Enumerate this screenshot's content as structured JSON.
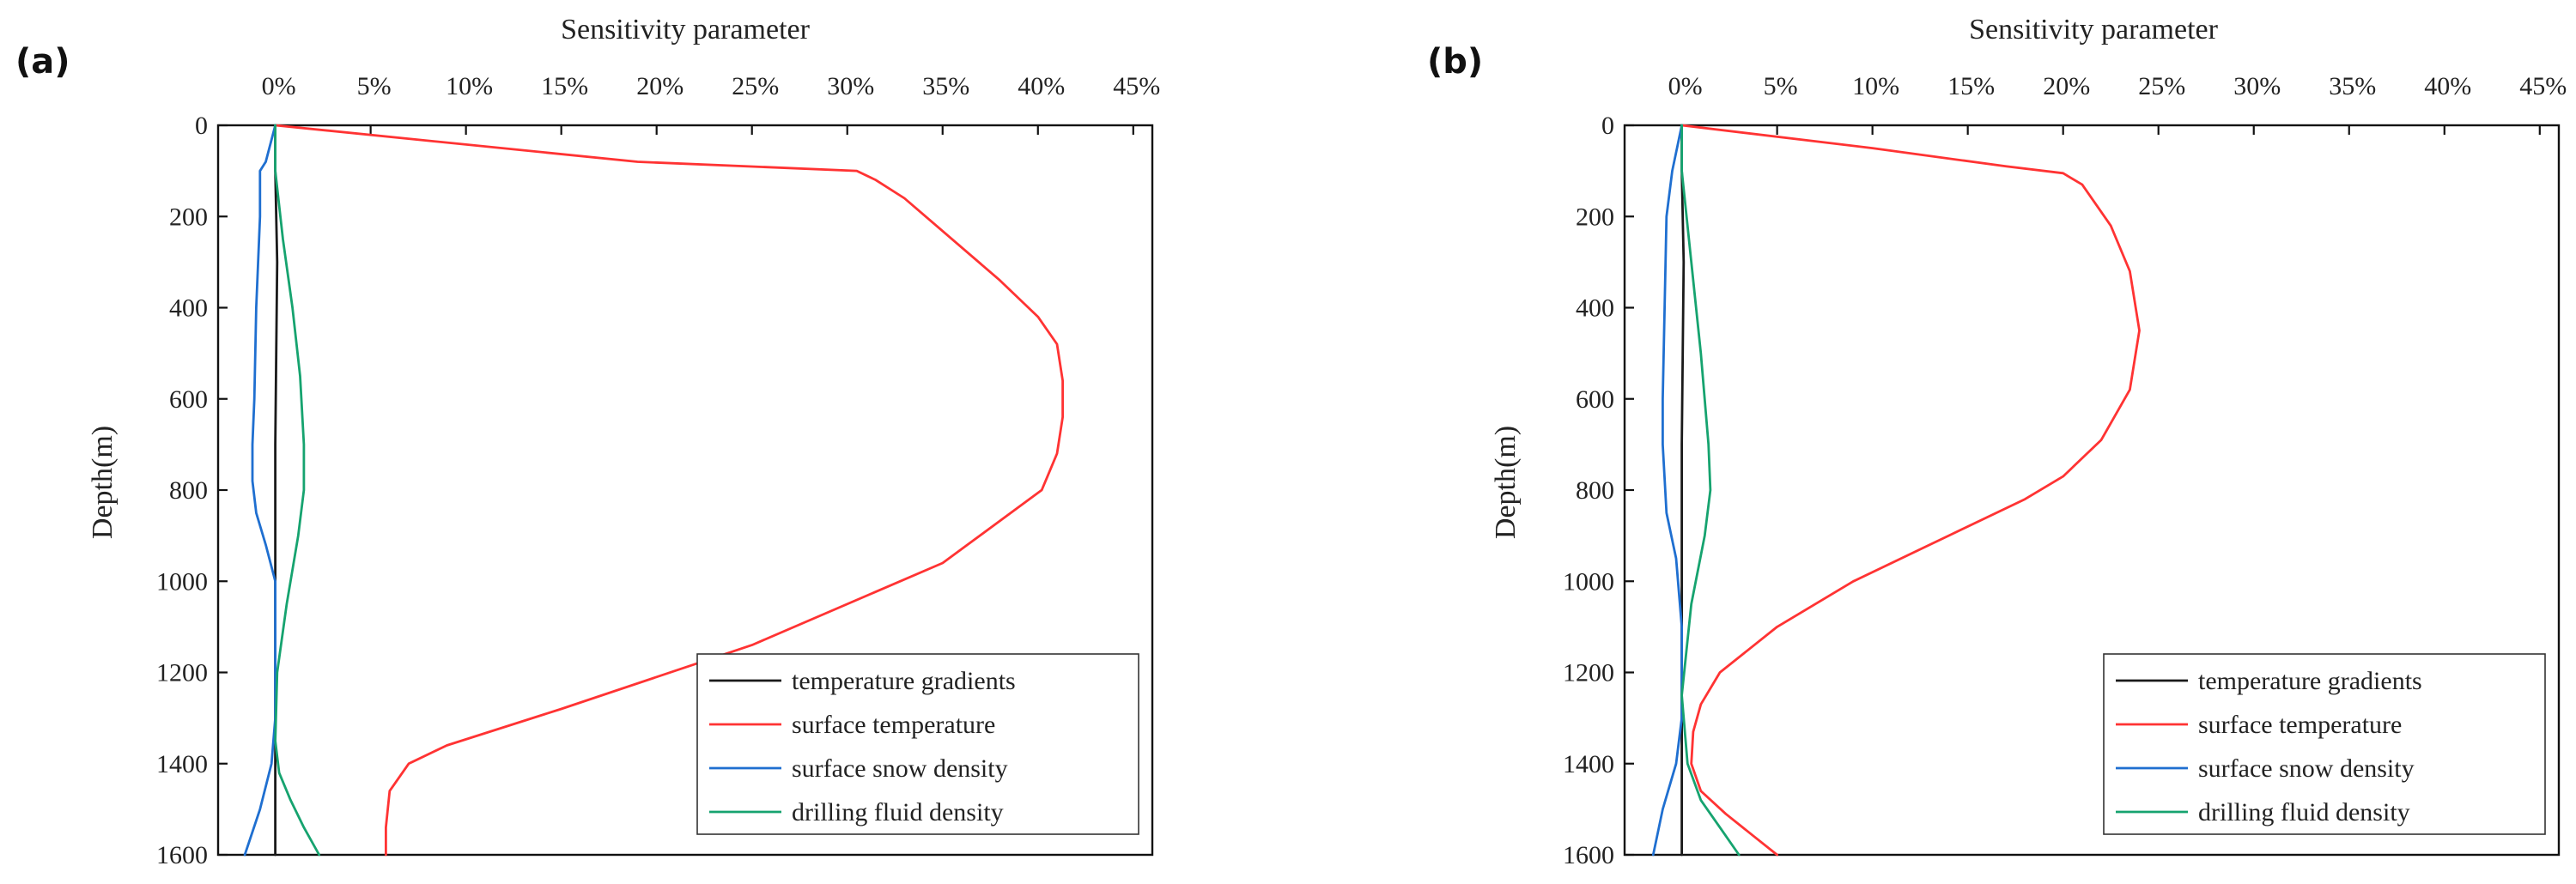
{
  "chart_data": [
    {
      "panel": "(a)",
      "type": "line",
      "title": "",
      "xlabel": "Sensitivity parameter",
      "ylabel": "Depth(m)",
      "xlim": [
        -3,
        46
      ],
      "ylim": [
        1600,
        0
      ],
      "x_ticks": [
        0,
        5,
        10,
        15,
        20,
        25,
        30,
        35,
        40,
        45
      ],
      "x_tick_labels": [
        "0%",
        "5%",
        "10%",
        "15%",
        "20%",
        "25%",
        "30%",
        "35%",
        "40%",
        "45%"
      ],
      "y_ticks": [
        0,
        200,
        400,
        600,
        800,
        1000,
        1200,
        1400,
        1600
      ],
      "y_tick_labels": [
        "0",
        "200",
        "400",
        "600",
        "800",
        "1000",
        "1200",
        "1400",
        "1600"
      ],
      "legend_position": "bottom-right",
      "series": [
        {
          "name": "temperature gradients",
          "color": "#1a1a1a",
          "x": [
            0,
            0,
            0.1,
            0.05,
            0,
            0,
            0
          ],
          "y": [
            0,
            100,
            300,
            500,
            700,
            900,
            1600
          ]
        },
        {
          "name": "surface temperature",
          "color": "#ff3333",
          "x": [
            0,
            19,
            30.5,
            31.5,
            33,
            35.5,
            38,
            40,
            41,
            41.3,
            41.3,
            41,
            40.5,
            40.2,
            35,
            25,
            15,
            9,
            7,
            6,
            5.8,
            5.8
          ],
          "y": [
            0,
            80,
            100,
            120,
            160,
            250,
            340,
            420,
            480,
            560,
            640,
            720,
            770,
            800,
            960,
            1140,
            1280,
            1360,
            1400,
            1460,
            1540,
            1600
          ]
        },
        {
          "name": "surface snow density",
          "color": "#1f6fd0",
          "x": [
            0,
            -0.5,
            -0.8,
            -0.8,
            -1,
            -1.1,
            -1.2,
            -1.2,
            -1,
            -0.5,
            0,
            0,
            0,
            -0.2,
            -0.8,
            -1.6
          ],
          "y": [
            0,
            80,
            100,
            200,
            400,
            600,
            700,
            780,
            850,
            920,
            1000,
            1200,
            1300,
            1400,
            1500,
            1600
          ]
        },
        {
          "name": "drilling fluid density",
          "color": "#16a36f",
          "x": [
            0,
            0,
            0.4,
            0.9,
            1.3,
            1.5,
            1.5,
            1.2,
            0.6,
            0.1,
            0,
            0.2,
            0.8,
            1.5,
            2.3
          ],
          "y": [
            0,
            100,
            250,
            400,
            550,
            700,
            800,
            900,
            1050,
            1200,
            1350,
            1420,
            1480,
            1540,
            1600
          ]
        }
      ]
    },
    {
      "panel": "(b)",
      "type": "line",
      "title": "",
      "xlabel": "Sensitivity parameter",
      "ylabel": "Depth(m)",
      "xlim": [
        -3,
        46
      ],
      "ylim": [
        1600,
        0
      ],
      "x_ticks": [
        0,
        5,
        10,
        15,
        20,
        25,
        30,
        35,
        40,
        45
      ],
      "x_tick_labels": [
        "0%",
        "5%",
        "10%",
        "15%",
        "20%",
        "25%",
        "30%",
        "35%",
        "40%",
        "45%"
      ],
      "y_ticks": [
        0,
        200,
        400,
        600,
        800,
        1000,
        1200,
        1400,
        1600
      ],
      "y_tick_labels": [
        "0",
        "200",
        "400",
        "600",
        "800",
        "1000",
        "1200",
        "1400",
        "1600"
      ],
      "legend_position": "bottom-right",
      "series": [
        {
          "name": "temperature gradients",
          "color": "#1a1a1a",
          "x": [
            0,
            0,
            0.1,
            0.05,
            0,
            0,
            0
          ],
          "y": [
            0,
            100,
            300,
            500,
            700,
            900,
            1600
          ]
        },
        {
          "name": "surface temperature",
          "color": "#ff3333",
          "x": [
            0,
            10,
            17,
            20,
            21,
            22.5,
            23.5,
            24,
            23.5,
            22,
            20,
            18,
            14,
            9,
            5,
            2,
            1,
            0.6,
            0.5,
            1,
            2.3,
            3.8,
            5
          ],
          "y": [
            0,
            50,
            90,
            105,
            130,
            220,
            320,
            450,
            580,
            690,
            770,
            820,
            900,
            1000,
            1100,
            1200,
            1270,
            1330,
            1400,
            1460,
            1510,
            1560,
            1600
          ]
        },
        {
          "name": "surface snow density",
          "color": "#1f6fd0",
          "x": [
            0,
            -0.5,
            -0.8,
            -0.9,
            -1,
            -1,
            -0.8,
            -0.3,
            0,
            0,
            -0.3,
            -1,
            -1.5
          ],
          "y": [
            0,
            100,
            200,
            400,
            600,
            700,
            850,
            950,
            1100,
            1300,
            1400,
            1500,
            1600
          ]
        },
        {
          "name": "drilling fluid density",
          "color": "#16a36f",
          "x": [
            0,
            0,
            0.5,
            1,
            1.4,
            1.5,
            1.2,
            0.5,
            0,
            0.3,
            1,
            2,
            3
          ],
          "y": [
            0,
            100,
            300,
            500,
            700,
            800,
            900,
            1050,
            1250,
            1400,
            1480,
            1540,
            1600
          ]
        }
      ]
    }
  ]
}
